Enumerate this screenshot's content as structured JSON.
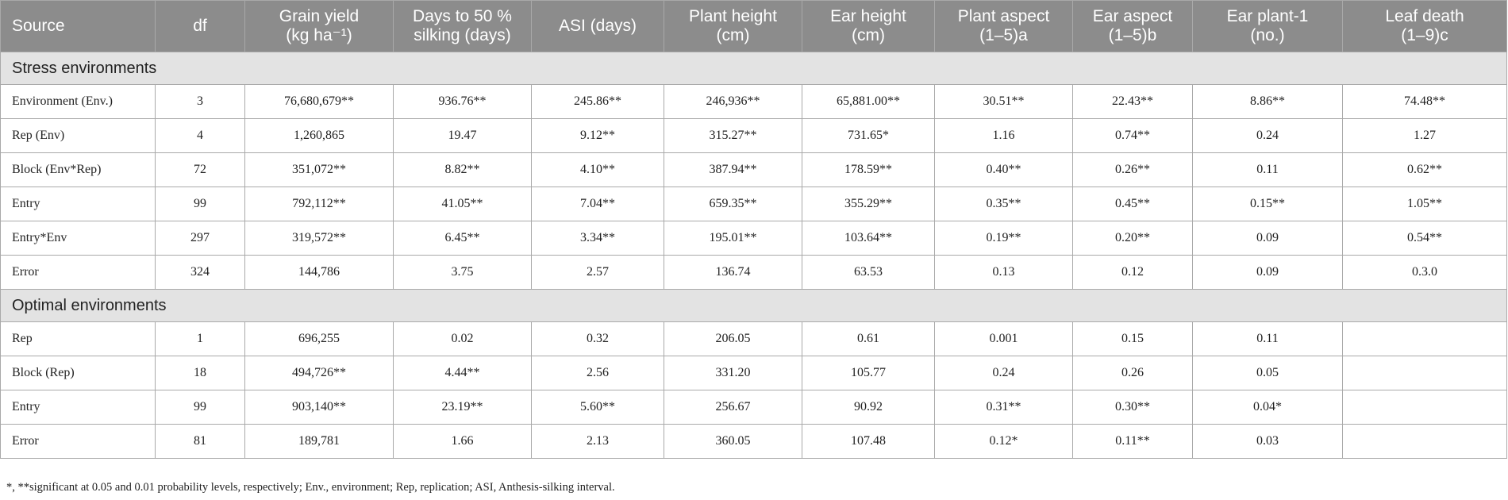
{
  "table": {
    "headers": [
      "Source",
      "df",
      "Grain yield\n(kg ha⁻¹)",
      "Days to 50 %\nsilking (days)",
      "ASI (days)",
      "Plant height\n(cm)",
      "Ear height\n(cm)",
      "Plant aspect\n(1–5)a",
      "Ear aspect\n(1–5)b",
      "Ear plant-1\n(no.)",
      "Leaf death\n(1–9)c"
    ],
    "sections": [
      {
        "title": "Stress environments",
        "rows": [
          [
            "Environment (Env.)",
            "3",
            "76,680,679**",
            "936.76**",
            "245.86**",
            "246,936**",
            "65,881.00**",
            "30.51**",
            "22.43**",
            "8.86**",
            "74.48**"
          ],
          [
            "Rep (Env)",
            "4",
            "1,260,865",
            "19.47",
            "9.12**",
            "315.27**",
            "731.65*",
            "1.16",
            "0.74**",
            "0.24",
            "1.27"
          ],
          [
            "Block (Env*Rep)",
            "72",
            "351,072**",
            "8.82**",
            "4.10**",
            "387.94**",
            "178.59**",
            "0.40**",
            "0.26**",
            "0.11",
            "0.62**"
          ],
          [
            "Entry",
            "99",
            "792,112**",
            "41.05**",
            "7.04**",
            "659.35**",
            "355.29**",
            "0.35**",
            "0.45**",
            "0.15**",
            "1.05**"
          ],
          [
            "Entry*Env",
            "297",
            "319,572**",
            "6.45**",
            "3.34**",
            "195.01**",
            "103.64**",
            "0.19**",
            "0.20**",
            "0.09",
            "0.54**"
          ],
          [
            "Error",
            "324",
            "144,786",
            "3.75",
            "2.57",
            "136.74",
            "63.53",
            "0.13",
            "0.12",
            "0.09",
            "0.3.0"
          ]
        ]
      },
      {
        "title": "Optimal environments",
        "rows": [
          [
            "Rep",
            "1",
            "696,255",
            "0.02",
            "0.32",
            "206.05",
            "0.61",
            "0.001",
            "0.15",
            "0.11",
            ""
          ],
          [
            "Block (Rep)",
            "18",
            "494,726**",
            "4.44**",
            "2.56",
            "331.20",
            "105.77",
            "0.24",
            "0.26",
            "0.05",
            ""
          ],
          [
            "Entry",
            "99",
            "903,140**",
            "23.19**",
            "5.60**",
            "256.67",
            "90.92",
            "0.31**",
            "0.30**",
            "0.04*",
            ""
          ],
          [
            "Error",
            "81",
            "189,781",
            "1.66",
            "2.13",
            "360.05",
            "107.48",
            "0.12*",
            "0.11**",
            "0.03",
            ""
          ]
        ]
      }
    ]
  },
  "footnote": "*, **significant at 0.05 and 0.01 probability levels, respectively; Env., environment; Rep, replication; ASI, Anthesis-silking interval."
}
